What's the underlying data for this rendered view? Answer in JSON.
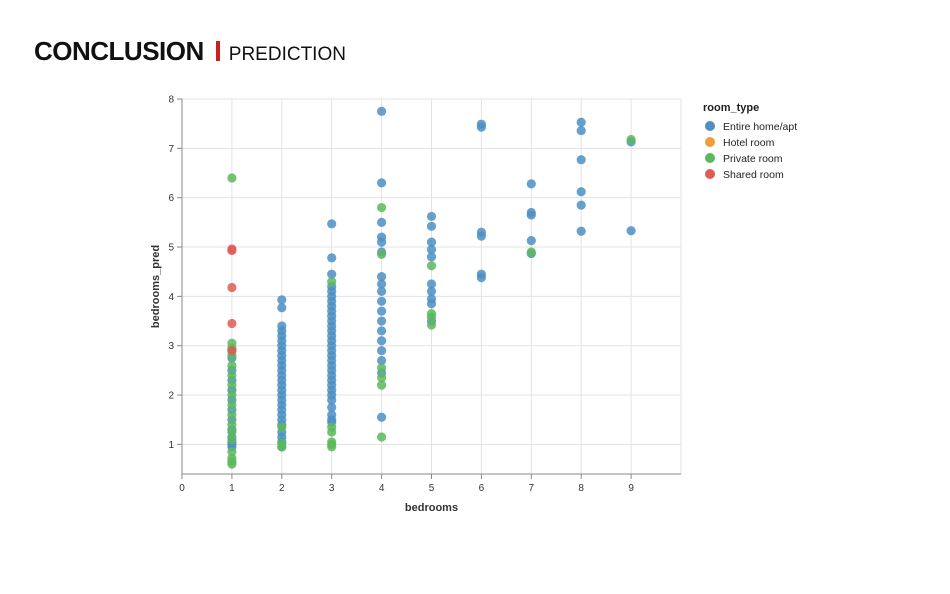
{
  "header": {
    "title": "CONCLUSION",
    "subtitle": "PREDICTION",
    "accent_color": "#cc1f1f"
  },
  "chart_data": {
    "type": "scatter",
    "title": "",
    "xlabel": "bedrooms",
    "ylabel": "bedrooms_pred",
    "xlim": [
      0,
      10
    ],
    "ylim": [
      0.4,
      8
    ],
    "x_ticks": [
      0,
      1,
      2,
      3,
      4,
      5,
      6,
      7,
      8,
      9
    ],
    "y_ticks": [
      1,
      2,
      3,
      4,
      5,
      6,
      7,
      8
    ],
    "grid": true,
    "legend": {
      "title": "room_type",
      "placement": "right"
    },
    "series": [
      {
        "name": "Entire home/apt",
        "color": "#4c8fc4",
        "points": [
          [
            1,
            0.95
          ],
          [
            1,
            1.0
          ],
          [
            1,
            1.05
          ],
          [
            1,
            1.15
          ],
          [
            1,
            1.3
          ],
          [
            1,
            1.5
          ],
          [
            1,
            1.7
          ],
          [
            1,
            1.9
          ],
          [
            1,
            2.1
          ],
          [
            1,
            2.3
          ],
          [
            1,
            2.5
          ],
          [
            1,
            2.75
          ],
          [
            1,
            2.9
          ],
          [
            2,
            0.95
          ],
          [
            2,
            1.05
          ],
          [
            2,
            1.15
          ],
          [
            2,
            1.25
          ],
          [
            2,
            1.4
          ],
          [
            2,
            1.5
          ],
          [
            2,
            1.6
          ],
          [
            2,
            1.7
          ],
          [
            2,
            1.8
          ],
          [
            2,
            1.9
          ],
          [
            2,
            2.0
          ],
          [
            2,
            2.1
          ],
          [
            2,
            2.2
          ],
          [
            2,
            2.3
          ],
          [
            2,
            2.4
          ],
          [
            2,
            2.5
          ],
          [
            2,
            2.6
          ],
          [
            2,
            2.7
          ],
          [
            2,
            2.8
          ],
          [
            2,
            2.9
          ],
          [
            2,
            3.0
          ],
          [
            2,
            3.1
          ],
          [
            2,
            3.2
          ],
          [
            2,
            3.3
          ],
          [
            2,
            3.4
          ],
          [
            2,
            3.77
          ],
          [
            2,
            3.93
          ],
          [
            3,
            1.45
          ],
          [
            3,
            1.5
          ],
          [
            3,
            1.6
          ],
          [
            3,
            1.75
          ],
          [
            3,
            1.9
          ],
          [
            3,
            2.0
          ],
          [
            3,
            2.1
          ],
          [
            3,
            2.2
          ],
          [
            3,
            2.3
          ],
          [
            3,
            2.4
          ],
          [
            3,
            2.5
          ],
          [
            3,
            2.6
          ],
          [
            3,
            2.7
          ],
          [
            3,
            2.8
          ],
          [
            3,
            2.9
          ],
          [
            3,
            3.0
          ],
          [
            3,
            3.1
          ],
          [
            3,
            3.2
          ],
          [
            3,
            3.3
          ],
          [
            3,
            3.4
          ],
          [
            3,
            3.5
          ],
          [
            3,
            3.6
          ],
          [
            3,
            3.7
          ],
          [
            3,
            3.8
          ],
          [
            3,
            3.9
          ],
          [
            3,
            4.0
          ],
          [
            3,
            4.1
          ],
          [
            3,
            4.2
          ],
          [
            3,
            4.45
          ],
          [
            3,
            4.78
          ],
          [
            3,
            5.47
          ],
          [
            4,
            1.55
          ],
          [
            4,
            2.45
          ],
          [
            4,
            2.7
          ],
          [
            4,
            2.9
          ],
          [
            4,
            3.1
          ],
          [
            4,
            3.3
          ],
          [
            4,
            3.5
          ],
          [
            4,
            3.7
          ],
          [
            4,
            3.9
          ],
          [
            4,
            4.1
          ],
          [
            4,
            4.25
          ],
          [
            4,
            4.4
          ],
          [
            4,
            4.9
          ],
          [
            4,
            5.1
          ],
          [
            4,
            5.2
          ],
          [
            4,
            5.5
          ],
          [
            4,
            6.3
          ],
          [
            4,
            7.75
          ],
          [
            5,
            3.5
          ],
          [
            5,
            3.85
          ],
          [
            5,
            3.95
          ],
          [
            5,
            4.1
          ],
          [
            5,
            4.25
          ],
          [
            5,
            4.8
          ],
          [
            5,
            4.95
          ],
          [
            5,
            5.1
          ],
          [
            5,
            5.42
          ],
          [
            5,
            5.62
          ],
          [
            6,
            4.38
          ],
          [
            6,
            4.45
          ],
          [
            6,
            5.22
          ],
          [
            6,
            5.3
          ],
          [
            6,
            7.43
          ],
          [
            6,
            7.49
          ],
          [
            7,
            4.87
          ],
          [
            7,
            5.13
          ],
          [
            7,
            5.65
          ],
          [
            7,
            5.7
          ],
          [
            7,
            6.28
          ],
          [
            8,
            5.32
          ],
          [
            8,
            5.85
          ],
          [
            8,
            6.12
          ],
          [
            8,
            6.77
          ],
          [
            8,
            7.36
          ],
          [
            8,
            7.53
          ],
          [
            9,
            5.33
          ],
          [
            9,
            7.13
          ]
        ]
      },
      {
        "name": "Hotel room",
        "color": "#f29b38",
        "points": []
      },
      {
        "name": "Private room",
        "color": "#5cb85c",
        "points": [
          [
            1,
            0.6
          ],
          [
            1,
            0.65
          ],
          [
            1,
            0.72
          ],
          [
            1,
            0.85
          ],
          [
            1,
            1.1
          ],
          [
            1,
            1.25
          ],
          [
            1,
            1.4
          ],
          [
            1,
            1.6
          ],
          [
            1,
            1.8
          ],
          [
            1,
            2.0
          ],
          [
            1,
            2.2
          ],
          [
            1,
            2.4
          ],
          [
            1,
            2.6
          ],
          [
            1,
            2.8
          ],
          [
            1,
            2.95
          ],
          [
            1,
            3.05
          ],
          [
            1,
            6.4
          ],
          [
            2,
            0.95
          ],
          [
            2,
            1.02
          ],
          [
            2,
            1.35
          ],
          [
            3,
            0.95
          ],
          [
            3,
            1.0
          ],
          [
            3,
            1.05
          ],
          [
            3,
            1.25
          ],
          [
            3,
            1.35
          ],
          [
            3,
            4.3
          ],
          [
            4,
            1.15
          ],
          [
            4,
            2.2
          ],
          [
            4,
            2.35
          ],
          [
            4,
            2.55
          ],
          [
            4,
            4.85
          ],
          [
            4,
            5.8
          ],
          [
            5,
            3.42
          ],
          [
            5,
            3.58
          ],
          [
            5,
            3.65
          ],
          [
            5,
            4.62
          ],
          [
            7,
            4.9
          ],
          [
            9,
            7.18
          ]
        ]
      },
      {
        "name": "Shared room",
        "color": "#e05a56",
        "points": [
          [
            1,
            2.9
          ],
          [
            1,
            3.45
          ],
          [
            1,
            4.18
          ],
          [
            1,
            4.93
          ],
          [
            1,
            4.96
          ]
        ]
      }
    ]
  }
}
